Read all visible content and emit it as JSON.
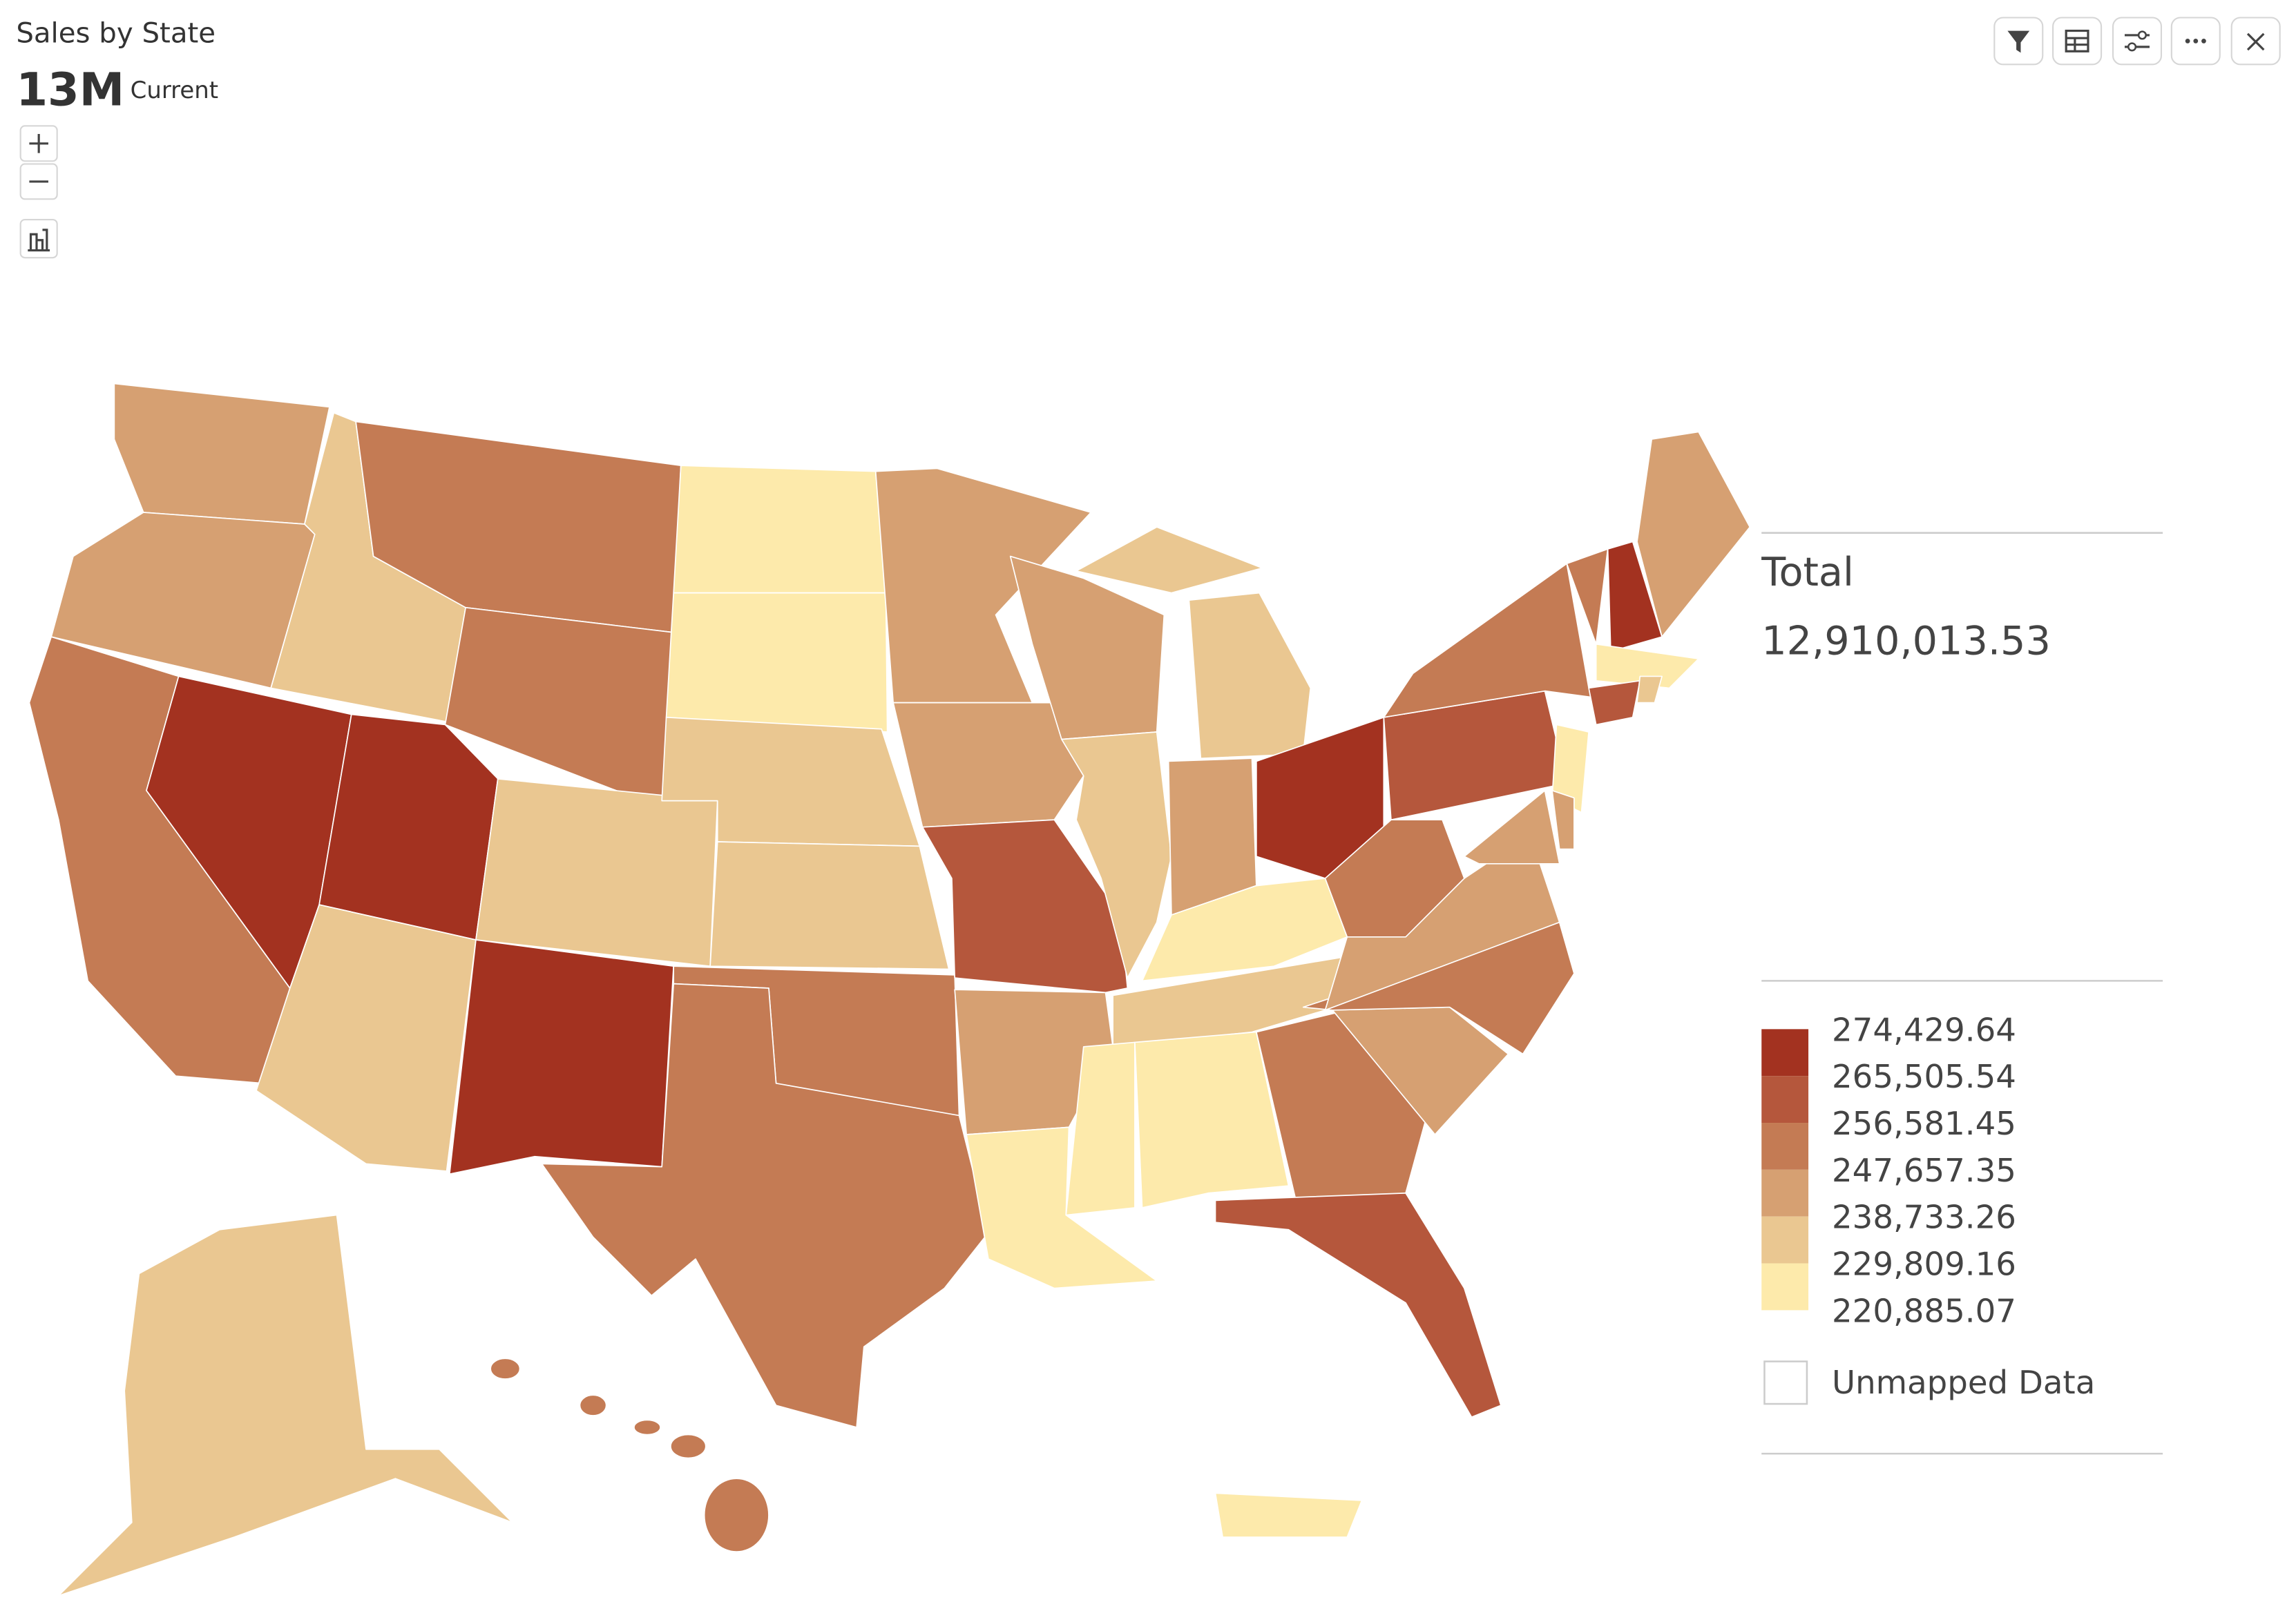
{
  "header": {
    "title": "Sales by State",
    "kpi": "13M",
    "kpi_label": "Current"
  },
  "legend": {
    "title": "Total",
    "total": "12,910,013.53",
    "breaks": [
      "274,429.64",
      "265,505.54",
      "256,581.45",
      "247,657.35",
      "238,733.26",
      "229,809.16",
      "220,885.07"
    ],
    "colors": [
      "#a33220",
      "#b5573c",
      "#c47b54",
      "#d6a072",
      "#eac791",
      "#fdeaab"
    ],
    "unmapped": "Unmapped Data"
  }
}
